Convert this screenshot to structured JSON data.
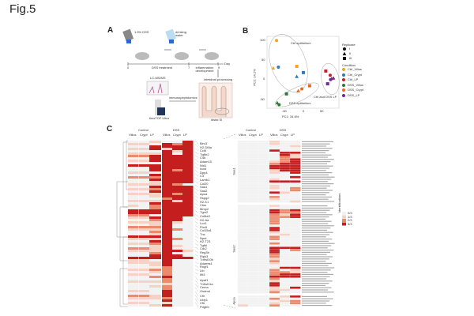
{
  "figure_title": "Fig.5",
  "panels": {
    "a": "A",
    "b": "B",
    "c": "C"
  },
  "panel_a": {
    "dss_label": "1.5% DSS",
    "water_label": "drinking water",
    "timeline_ticks": [
      "0",
      "7",
      "9"
    ],
    "day_label": "Day",
    "dss_treatment": "DSS treatment",
    "inflammation": "inflammation development",
    "processing": "intestinal processing",
    "tissue": "distal SI",
    "method": "immunopeptidomics",
    "ms": "LC-MS/MS",
    "instrument": "timsTOF Ultra"
  },
  "chart_data": [
    {
      "type": "scatter",
      "title": "PCA",
      "xlabel": "PC1: 34.6%",
      "ylabel": "PC2: 14.2%",
      "xticks": [
        "-50",
        "0",
        "50"
      ],
      "yticks": [
        "-50",
        "0",
        "50",
        "100"
      ],
      "xlim": [
        -100,
        95
      ],
      "ylim": [
        -78,
        115
      ],
      "annotations": [
        "Ctrl epithelium",
        "DSS epithelium",
        "Ctrl and DSS LP"
      ],
      "legend": {
        "replicate_title": "Replicate",
        "replicates": [
          {
            "label": "I",
            "shape": "circle"
          },
          {
            "label": "II",
            "shape": "triangle"
          },
          {
            "label": "III",
            "shape": "square"
          }
        ],
        "condition_title": "Condition"
      },
      "series": [
        {
          "name": "Ctrl_Villus",
          "color": "#f5a31a",
          "points": [
            [
              -73,
              101
            ],
            [
              -82,
              30
            ],
            [
              -18,
              34
            ]
          ]
        },
        {
          "name": "Ctrl_Crypt",
          "color": "#2a7bbf",
          "points": [
            [
              -68,
              32
            ],
            [
              -18,
              8
            ],
            [
              0,
              18
            ]
          ]
        },
        {
          "name": "Ctrl_LP",
          "color": "#c8202a",
          "points": [
            [
              73,
              11
            ],
            [
              77,
              3
            ],
            [
              61,
              22
            ]
          ]
        },
        {
          "name": "DSS_Villus",
          "color": "#2a7a3a",
          "points": [
            [
              -66,
              -65
            ],
            [
              -71,
              -60
            ],
            [
              -46,
              -37
            ]
          ]
        },
        {
          "name": "DSS_Crypt",
          "color": "#f0661e",
          "points": [
            [
              -4,
              -24
            ],
            [
              -14,
              -29
            ],
            [
              17,
              -16
            ]
          ]
        },
        {
          "name": "DSS_LP",
          "color": "#6a2a9a",
          "points": [
            [
              74,
              0
            ],
            [
              82,
              4
            ],
            [
              66,
              -11
            ]
          ]
        }
      ]
    },
    {
      "type": "heatmap",
      "name": "protein-heatmap",
      "group_headers": [
        "Control",
        "DSS"
      ],
      "columns": [
        "Villus",
        "Crypt",
        "LP",
        "Villus",
        "Crypt",
        "LP"
      ],
      "genes": [
        "Birc3",
        "H2-DMa",
        "Ccl6",
        "Tgfbr2",
        "C4b",
        "Adam15",
        "Nid1",
        "Icosl",
        "Dpp4",
        "C3",
        "Lamb1",
        "Col20",
        "Saa1",
        "Saa2",
        "Apoa",
        "Hspg2",
        "H2-K1",
        "Ctss",
        "Mmp2",
        "Tgm2",
        "Col6a3",
        "H2-Aa",
        "Lox1",
        "Fbn5",
        "Col15a1",
        "Tnc",
        "Npnt",
        "H2-T23",
        "Tgfbi",
        "Cdr2",
        "Reg3b",
        "Ripk3",
        "Tnfrsf10b",
        "Adamts1",
        "Rngf1",
        "Ltb",
        "Ifit3",
        "Apaf1",
        "Tnfrsf11a",
        "Cema",
        "Gsdmd",
        "Cfh",
        "Ltbp1",
        "Cfb",
        "Pdgfrb"
      ],
      "rows": [
        "001003",
        "110323",
        "003333",
        "113133",
        "000313",
        "111303",
        "223333",
        "003333",
        "113333",
        "000333",
        "333333",
        "003333",
        "003323",
        "110333",
        "003333",
        "222333",
        "003333",
        "001333",
        "111320",
        "003333",
        "112333",
        "003333",
        "111323",
        "001333",
        "000233",
        "111313",
        "003333",
        "102333",
        "002333",
        "333333",
        "333333",
        "220333",
        "113330",
        "002330",
        "111310",
        "001300",
        "222300",
        "111320",
        "002300",
        "001300",
        "333300",
        "111320",
        "003300",
        "112300",
        "001310",
        "221300",
        "111331",
        "002300",
        "003330",
        "333333",
        "110300",
        "111300",
        "001300",
        "000200",
        "112200",
        "001200",
        "110200",
        "002300",
        "000200",
        "111200",
        "000100",
        "001200",
        "000200",
        "110300",
        "000300",
        "221300",
        "111200",
        "000300",
        "110100",
        "001300"
      ],
      "colors": [
        "#f2f2f2",
        "#f7d2c4",
        "#ec8a6e",
        "#c41e1e"
      ]
    },
    {
      "type": "heatmap",
      "name": "peptide-heatmap",
      "group_headers": [
        "Control",
        "DSS"
      ],
      "columns": [
        "Villus",
        "Crypt",
        "LP",
        "Villus",
        "Crypt",
        "LP"
      ],
      "groups": [
        {
          "name": "Saa1",
          "rows": [
            "000100",
            "000100",
            "000001",
            "000000",
            "000300",
            "000033",
            "000031",
            "000021",
            "000023",
            "000123",
            "000233",
            "000333",
            "000333",
            "000133",
            "000103",
            "000000",
            "000003",
            "000100",
            "000333",
            "000000",
            "000100",
            "000102",
            "000002",
            "000310",
            "000000",
            "000200",
            "000100",
            "000001"
          ]
        },
        {
          "name": "Saa2",
          "rows": [
            "000100",
            "000000",
            "000323",
            "000322",
            "000213",
            "000223",
            "000200",
            "000200",
            "000200",
            "000000",
            "000300",
            "000300",
            "000100",
            "000010",
            "000200",
            "000200",
            "000000",
            "000200",
            "000000",
            "000333",
            "000302",
            "000300",
            "000200",
            "000200",
            "000100",
            "000200",
            "000100",
            "000000",
            "000033",
            "000201",
            "000221",
            "000233",
            "000333",
            "000200",
            "000100",
            "000300",
            "000300",
            "000103",
            "000110",
            "000200"
          ]
        },
        {
          "name": "Apoa",
          "rows": [
            "000013",
            "000200",
            "000012",
            "000102",
            "100200"
          ]
        }
      ],
      "legend_title": "Identifications",
      "legend_labels": [
        "0/3",
        "1/3",
        "2/3",
        "3/3"
      ]
    }
  ]
}
